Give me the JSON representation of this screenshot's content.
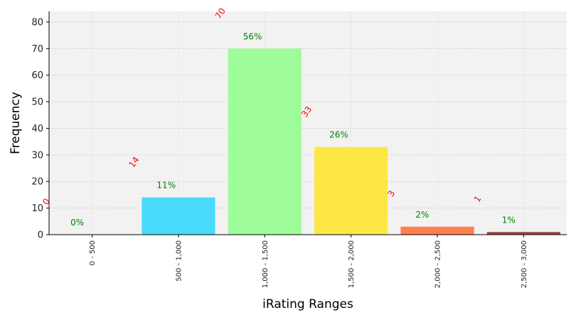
{
  "chart_data": {
    "type": "bar",
    "title": "",
    "xlabel": "iRating Ranges",
    "ylabel": "Frequency",
    "ylim": [
      0,
      84
    ],
    "yticks": [
      0,
      10,
      20,
      30,
      40,
      50,
      60,
      70,
      80
    ],
    "grid": true,
    "categories": [
      "0 - 500",
      "500 - 1,000",
      "1,000 - 1,500",
      "1,500 - 2,000",
      "2,000 - 2,500",
      "2,500 - 3,000"
    ],
    "values": [
      0,
      14,
      70,
      33,
      3,
      1
    ],
    "percent_labels": [
      "0%",
      "11%",
      "56%",
      "26%",
      "2%",
      "1%"
    ],
    "colors": [
      "#2196f3",
      "#48dbfb",
      "#9efc9a",
      "#fce744",
      "#ff7f4f",
      "#a0413c"
    ],
    "count_label_color": "#ff0000",
    "percent_label_color": "#008000"
  }
}
